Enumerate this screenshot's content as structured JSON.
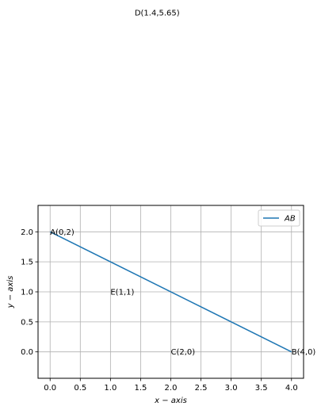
{
  "chart_data": {
    "type": "line",
    "xlabel": "x − axis",
    "ylabel": "y − axis",
    "xlim": [
      -0.2,
      4.2
    ],
    "ylim": [
      -0.44,
      2.44
    ],
    "xticks": [
      0.0,
      0.5,
      1.0,
      1.5,
      2.0,
      2.5,
      3.0,
      3.5,
      4.0
    ],
    "xtick_labels": [
      "0.0",
      "0.5",
      "1.0",
      "1.5",
      "2.0",
      "2.5",
      "3.0",
      "3.5",
      "4.0"
    ],
    "yticks": [
      0.0,
      0.5,
      1.0,
      1.5,
      2.0
    ],
    "ytick_labels": [
      "0.0",
      "0.5",
      "1.0",
      "1.5",
      "2.0"
    ],
    "grid": true,
    "legend_position": "top-right",
    "series": [
      {
        "name": "AB",
        "color": "#1f77b4",
        "x": [
          0,
          4
        ],
        "y": [
          2,
          0
        ]
      }
    ],
    "annotations": [
      {
        "id": "A",
        "text": "A(0,2)",
        "x": 0,
        "y": 2
      },
      {
        "id": "B",
        "text": "B(4,0)",
        "x": 4,
        "y": 0
      },
      {
        "id": "C",
        "text": "C(2,0)",
        "x": 2,
        "y": 0
      },
      {
        "id": "D",
        "text": "D(1.4,5.65)",
        "x": 1.4,
        "y": 5.65
      },
      {
        "id": "E",
        "text": "E(1,1)",
        "x": 1,
        "y": 1
      }
    ]
  }
}
